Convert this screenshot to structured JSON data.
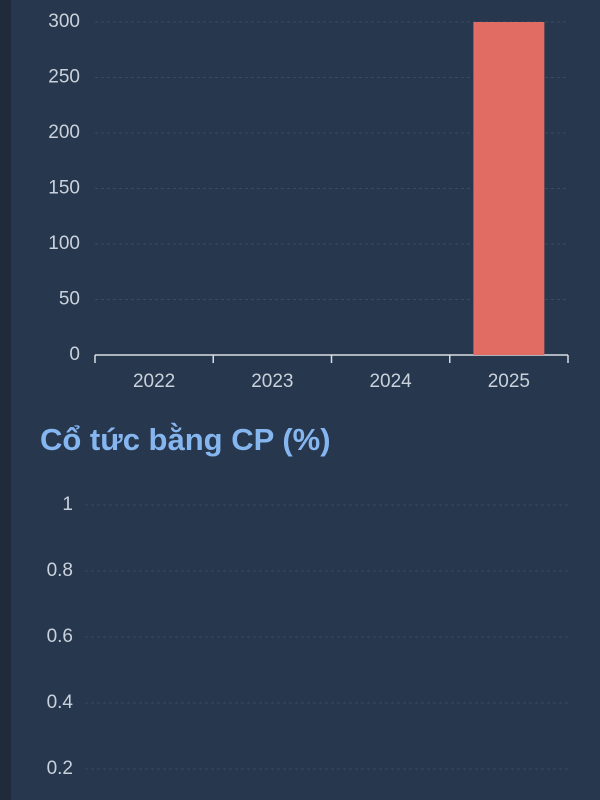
{
  "chart_data": [
    {
      "type": "bar",
      "categories": [
        "2022",
        "2023",
        "2024",
        "2025"
      ],
      "values": [
        0,
        0,
        0,
        300
      ],
      "color": "#e06c63",
      "ylim": [
        0,
        300
      ],
      "yticks": [
        0,
        50,
        100,
        150,
        200,
        250,
        300
      ],
      "grid": true
    },
    {
      "type": "bar",
      "title": "Cổ tức bằng CP (%)",
      "ylim": [
        0,
        1
      ],
      "yticks": [
        0.2,
        0.4,
        0.6,
        0.8,
        1
      ],
      "grid": true
    }
  ]
}
